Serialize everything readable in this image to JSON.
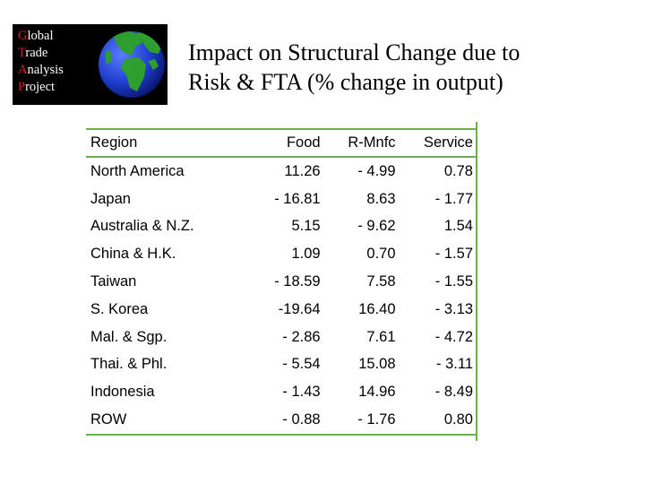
{
  "logo": {
    "lines": [
      {
        "first": "G",
        "rest": "lobal"
      },
      {
        "first": "T",
        "rest": "rade"
      },
      {
        "first": "A",
        "rest": "nalysis"
      },
      {
        "first": "P",
        "rest": "roject"
      }
    ]
  },
  "title": {
    "line1": "Impact on Structural Change due to",
    "line2": "Risk & FTA (% change in output)"
  },
  "table": {
    "headers": [
      "Region",
      "Food",
      "R-Mnfc",
      "Service"
    ],
    "rows": [
      [
        "North America",
        "11.26",
        "- 4.99",
        "0.78"
      ],
      [
        "Japan",
        "- 16.81",
        "8.63",
        "- 1.77"
      ],
      [
        "Australia & N.Z.",
        "5.15",
        "- 9.62",
        "1.54"
      ],
      [
        "China & H.K.",
        "1.09",
        "0.70",
        "- 1.57"
      ],
      [
        "Taiwan",
        "- 18.59",
        "7.58",
        "- 1.55"
      ],
      [
        "S. Korea",
        "-19.64",
        "16.40",
        "- 3.13"
      ],
      [
        "Mal. & Sgp.",
        "- 2.86",
        "7.61",
        "- 4.72"
      ],
      [
        "Thai. & Phl.",
        "- 5.54",
        "15.08",
        "- 3.11"
      ],
      [
        "Indonesia",
        "- 1.43",
        "14.96",
        "- 8.49"
      ],
      [
        "ROW",
        "- 0.88",
        "- 1.76",
        "0.80"
      ]
    ]
  },
  "colors": {
    "rule": "#6ab04c",
    "logo_initial": "#d62020",
    "ocean": "#1f3fcf",
    "land": "#2e9e2e"
  }
}
